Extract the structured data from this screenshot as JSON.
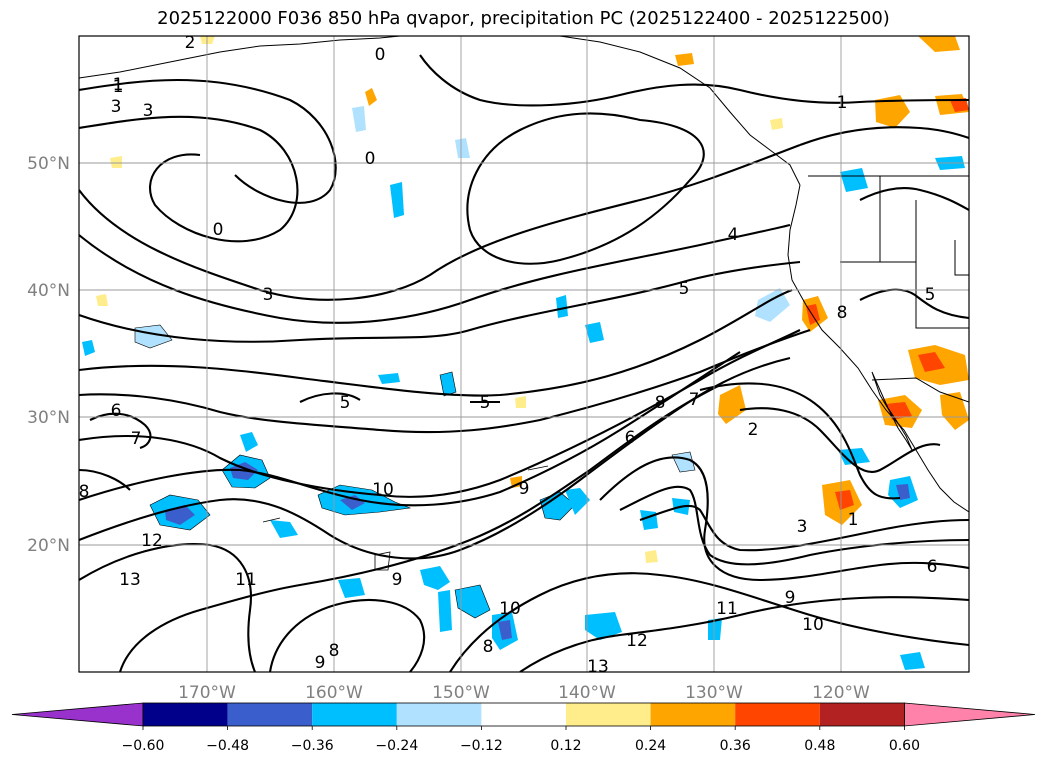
{
  "title": "2025122000 F036 850 hPa qvapor, precipitation PC (2025122400 - 2025122500)",
  "map": {
    "lon_labels": [
      "170°W",
      "160°W",
      "150°W",
      "140°W",
      "130°W",
      "120°W"
    ],
    "lat_labels": [
      "50°N",
      "40°N",
      "30°N",
      "20°N"
    ],
    "contour_labels": [
      "2",
      "0",
      "1",
      "3",
      "3",
      "0",
      "0",
      "3",
      "4",
      "5",
      "5",
      "5",
      "6",
      "7",
      "8",
      "10",
      "9",
      "6",
      "8",
      "12",
      "13",
      "11",
      "8",
      "9",
      "8",
      "9",
      "10",
      "12",
      "13",
      "11",
      "10",
      "9",
      "3",
      "2",
      "1",
      "8",
      "6",
      "7",
      "5",
      "1",
      "1"
    ]
  },
  "colorbar": {
    "tick_labels": [
      "−0.60",
      "−0.48",
      "−0.36",
      "−0.24",
      "−0.12",
      "0.12",
      "0.24",
      "0.36",
      "0.48",
      "0.60"
    ],
    "colors": [
      "#9932cc",
      "#00008b",
      "#3a5fcd",
      "#00bfff",
      "#b0e2ff",
      "#ffffff",
      "#ffec8b",
      "#ffa500",
      "#ff4500",
      "#b22222",
      "#ff82ab"
    ]
  }
}
